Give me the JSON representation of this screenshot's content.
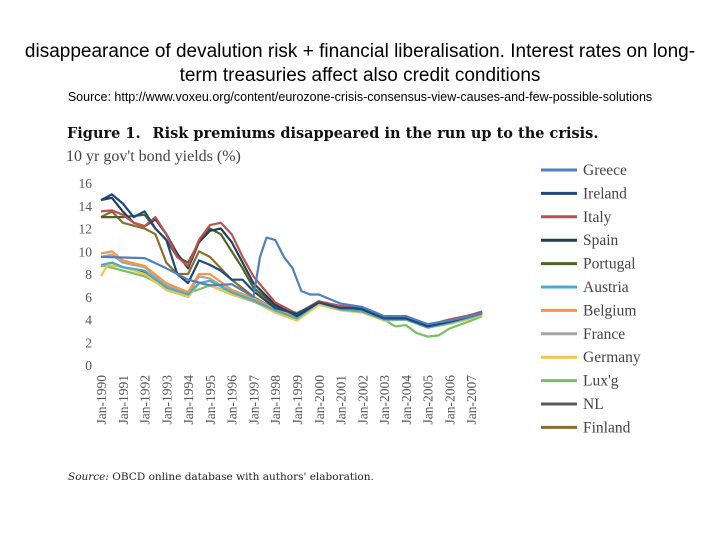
{
  "slide": {
    "headline": "disappearance of devalution risk + financial liberalisation. Interest rates on long-term treasuries affect also credit conditions",
    "source": "Source: http://www.voxeu.org/content/eurozone-crisis-consensus-view-causes-and-few-possible-solutions"
  },
  "figure": {
    "label": "Figure 1.",
    "title": "Risk premiums disappeared in the run up to the crisis.",
    "source_label": "Source:",
    "source_text": " OBCD online database with authors' elaboration."
  },
  "chart_data": {
    "type": "line",
    "title": "Risk premiums disappeared in the run up to the crisis.",
    "ylabel": "10 yr gov't bond yields (%)",
    "xlabel": "",
    "ylim": [
      0,
      16
    ],
    "yticks": [
      "0",
      "2",
      "4",
      "6",
      "8",
      "10",
      "12",
      "14",
      "16"
    ],
    "xlim": [
      1990,
      2008
    ],
    "xticks": [
      "Jan-1990",
      "Jan-1991",
      "Jan-1992",
      "Jan-1993",
      "Jan-1994",
      "Jan-1995",
      "Jan-1996",
      "Jan-1997",
      "Jan-1998",
      "Jan-1999",
      "Jan-2000",
      "Jan-2001",
      "Jan-2002",
      "Jan-2003",
      "Jan-2004",
      "Jan-2005",
      "Jan-2006",
      "Jan-2007"
    ],
    "grid": false,
    "legend_position": "right",
    "series": [
      {
        "name": "Greece",
        "color": "#4f81bd",
        "points": [
          [
            1990,
            9.5
          ],
          [
            1992,
            9.4
          ],
          [
            1993,
            8.5
          ],
          [
            1994,
            7.5
          ],
          [
            1995,
            7.0
          ],
          [
            1996,
            7.1
          ],
          [
            1997,
            6.0
          ],
          [
            1997.3,
            9.5
          ],
          [
            1997.6,
            11.2
          ],
          [
            1998,
            11.0
          ],
          [
            1998.4,
            9.5
          ],
          [
            1998.8,
            8.5
          ],
          [
            1999.2,
            6.5
          ],
          [
            1999.6,
            6.2
          ],
          [
            2000,
            6.2
          ],
          [
            2001,
            5.4
          ],
          [
            2002,
            5.1
          ],
          [
            2003,
            4.3
          ],
          [
            2004,
            4.3
          ],
          [
            2005,
            3.6
          ],
          [
            2006,
            3.9
          ],
          [
            2007,
            4.3
          ],
          [
            2007.5,
            4.6
          ]
        ]
      },
      {
        "name": "Ireland",
        "color": "#1f497d",
        "points": [
          [
            1990,
            14.5
          ],
          [
            1990.5,
            15.0
          ],
          [
            1991,
            14.2
          ],
          [
            1991.5,
            13.0
          ],
          [
            1992,
            13.5
          ],
          [
            1992.5,
            12.0
          ],
          [
            1993,
            11.0
          ],
          [
            1993.5,
            8.0
          ],
          [
            1994,
            7.2
          ],
          [
            1994.5,
            9.2
          ],
          [
            1995,
            8.8
          ],
          [
            1995.5,
            8.3
          ],
          [
            1996,
            7.5
          ],
          [
            1996.5,
            7.5
          ],
          [
            1997,
            6.5
          ],
          [
            1998,
            5.0
          ],
          [
            1999,
            4.5
          ],
          [
            2000,
            5.5
          ],
          [
            2001,
            5.0
          ],
          [
            2002,
            5.0
          ],
          [
            2003,
            4.1
          ],
          [
            2004,
            4.2
          ],
          [
            2005,
            3.4
          ],
          [
            2006,
            3.8
          ],
          [
            2007,
            4.3
          ],
          [
            2007.5,
            4.6
          ]
        ]
      },
      {
        "name": "Italy",
        "color": "#c0504d",
        "points": [
          [
            1990,
            13.5
          ],
          [
            1990.5,
            13.6
          ],
          [
            1991,
            13.2
          ],
          [
            1991.5,
            12.5
          ],
          [
            1992,
            12.2
          ],
          [
            1992.5,
            13.0
          ],
          [
            1993,
            11.5
          ],
          [
            1993.5,
            9.5
          ],
          [
            1994,
            8.7
          ],
          [
            1994.5,
            11.0
          ],
          [
            1995,
            12.3
          ],
          [
            1995.5,
            12.5
          ],
          [
            1996,
            11.5
          ],
          [
            1996.5,
            9.5
          ],
          [
            1997,
            7.8
          ],
          [
            1998,
            5.5
          ],
          [
            1999,
            4.5
          ],
          [
            2000,
            5.6
          ],
          [
            2001,
            5.2
          ],
          [
            2002,
            5.0
          ],
          [
            2003,
            4.2
          ],
          [
            2004,
            4.3
          ],
          [
            2005,
            3.5
          ],
          [
            2006,
            4.0
          ],
          [
            2007,
            4.4
          ],
          [
            2007.5,
            4.7
          ]
        ]
      },
      {
        "name": "Spain",
        "color": "#1e4159",
        "points": [
          [
            1990,
            14.5
          ],
          [
            1990.5,
            14.7
          ],
          [
            1991,
            13.5
          ],
          [
            1991.5,
            12.5
          ],
          [
            1992,
            12.2
          ],
          [
            1992.5,
            12.8
          ],
          [
            1993,
            11.5
          ],
          [
            1993.5,
            9.8
          ],
          [
            1994,
            8.5
          ],
          [
            1994.5,
            10.8
          ],
          [
            1995,
            11.8
          ],
          [
            1995.5,
            12.0
          ],
          [
            1996,
            10.8
          ],
          [
            1996.5,
            9.0
          ],
          [
            1997,
            7.2
          ],
          [
            1998,
            5.3
          ],
          [
            1999,
            4.3
          ],
          [
            2000,
            5.5
          ],
          [
            2001,
            5.1
          ],
          [
            2002,
            4.9
          ],
          [
            2003,
            4.1
          ],
          [
            2004,
            4.1
          ],
          [
            2005,
            3.4
          ],
          [
            2006,
            3.8
          ],
          [
            2007,
            4.3
          ],
          [
            2007.5,
            4.6
          ]
        ]
      },
      {
        "name": "Portugal",
        "color": "#4f6228",
        "points": [
          [
            1990,
            13.0
          ],
          [
            1991,
            13.0
          ],
          [
            1992,
            13.2
          ],
          [
            1992.5,
            12.0
          ],
          [
            1993,
            11.0
          ],
          [
            1993.5,
            9.5
          ],
          [
            1994,
            9.0
          ],
          [
            1994.5,
            10.8
          ],
          [
            1995,
            12.0
          ],
          [
            1995.5,
            11.5
          ],
          [
            1996,
            10.0
          ],
          [
            1996.5,
            8.5
          ],
          [
            1997,
            6.8
          ],
          [
            1998,
            5.2
          ],
          [
            1999,
            4.5
          ],
          [
            2000,
            5.6
          ],
          [
            2001,
            5.1
          ],
          [
            2002,
            5.0
          ],
          [
            2003,
            4.2
          ],
          [
            2004,
            4.2
          ],
          [
            2005,
            3.4
          ],
          [
            2006,
            3.9
          ],
          [
            2007,
            4.4
          ],
          [
            2007.5,
            4.7
          ]
        ]
      },
      {
        "name": "Austria",
        "color": "#4bacc6",
        "points": [
          [
            1990,
            8.8
          ],
          [
            1990.5,
            9.0
          ],
          [
            1991,
            8.6
          ],
          [
            1992,
            8.3
          ],
          [
            1993,
            6.8
          ],
          [
            1994,
            6.2
          ],
          [
            1994.5,
            7.2
          ],
          [
            1995,
            7.4
          ],
          [
            1996,
            6.4
          ],
          [
            1997,
            5.7
          ],
          [
            1998,
            4.8
          ],
          [
            1999,
            4.1
          ],
          [
            2000,
            5.5
          ],
          [
            2001,
            4.9
          ],
          [
            2002,
            4.7
          ],
          [
            2003,
            4.0
          ],
          [
            2004,
            4.0
          ],
          [
            2005,
            3.3
          ],
          [
            2006,
            3.7
          ],
          [
            2007,
            4.2
          ],
          [
            2007.5,
            4.5
          ]
        ]
      },
      {
        "name": "Belgium",
        "color": "#f79646",
        "points": [
          [
            1990,
            9.8
          ],
          [
            1990.5,
            10.0
          ],
          [
            1991,
            9.2
          ],
          [
            1992,
            8.7
          ],
          [
            1993,
            7.2
          ],
          [
            1994,
            6.4
          ],
          [
            1994.5,
            8.0
          ],
          [
            1995,
            8.0
          ],
          [
            1996,
            6.6
          ],
          [
            1997,
            5.9
          ],
          [
            1998,
            4.9
          ],
          [
            1999,
            4.2
          ],
          [
            2000,
            5.6
          ],
          [
            2001,
            5.0
          ],
          [
            2002,
            4.8
          ],
          [
            2003,
            4.1
          ],
          [
            2004,
            4.1
          ],
          [
            2005,
            3.4
          ],
          [
            2006,
            3.8
          ],
          [
            2007,
            4.3
          ],
          [
            2007.5,
            4.6
          ]
        ]
      },
      {
        "name": "France",
        "color": "#a5a5a5",
        "points": [
          [
            1990,
            9.5
          ],
          [
            1990.5,
            9.7
          ],
          [
            1991,
            9.0
          ],
          [
            1992,
            8.6
          ],
          [
            1993,
            7.0
          ],
          [
            1994,
            6.2
          ],
          [
            1994.5,
            7.8
          ],
          [
            1995,
            7.6
          ],
          [
            1996,
            6.4
          ],
          [
            1997,
            5.6
          ],
          [
            1998,
            4.8
          ],
          [
            1999,
            4.1
          ],
          [
            2000,
            5.5
          ],
          [
            2001,
            4.9
          ],
          [
            2002,
            4.7
          ],
          [
            2003,
            4.0
          ],
          [
            2004,
            4.0
          ],
          [
            2005,
            3.3
          ],
          [
            2006,
            3.7
          ],
          [
            2007,
            4.2
          ],
          [
            2007.5,
            4.5
          ]
        ]
      },
      {
        "name": "Germany",
        "color": "#f3c64b",
        "points": [
          [
            1990,
            7.8
          ],
          [
            1990.3,
            8.8
          ],
          [
            1991,
            8.6
          ],
          [
            1992,
            8.0
          ],
          [
            1993,
            6.6
          ],
          [
            1994,
            6.0
          ],
          [
            1994.5,
            7.2
          ],
          [
            1995,
            7.0
          ],
          [
            1996,
            6.2
          ],
          [
            1997,
            5.6
          ],
          [
            1998,
            4.6
          ],
          [
            1999,
            3.9
          ],
          [
            2000,
            5.3
          ],
          [
            2001,
            4.8
          ],
          [
            2002,
            4.6
          ],
          [
            2003,
            3.9
          ],
          [
            2004,
            4.0
          ],
          [
            2005,
            3.3
          ],
          [
            2006,
            3.6
          ],
          [
            2007,
            4.1
          ],
          [
            2007.5,
            4.4
          ]
        ]
      },
      {
        "name": "Lux'g",
        "color": "#77c160",
        "points": [
          [
            1990,
            8.8
          ],
          [
            1991,
            8.3
          ],
          [
            1992,
            7.8
          ],
          [
            1993,
            6.8
          ],
          [
            1994,
            6.3
          ],
          [
            1995,
            7.0
          ],
          [
            1996,
            6.3
          ],
          [
            1997,
            5.6
          ],
          [
            1998,
            5.0
          ],
          [
            1999,
            4.6
          ],
          [
            2000,
            5.4
          ],
          [
            2001,
            4.8
          ],
          [
            2002,
            4.7
          ],
          [
            2003,
            4.0
          ],
          [
            2003.5,
            3.4
          ],
          [
            2004,
            3.5
          ],
          [
            2004.5,
            2.8
          ],
          [
            2005,
            2.5
          ],
          [
            2005.5,
            2.6
          ],
          [
            2006,
            3.2
          ],
          [
            2007,
            3.9
          ],
          [
            2007.5,
            4.3
          ]
        ]
      },
      {
        "name": "NL",
        "color": "#595959",
        "points": [
          [
            1990,
            8.7
          ],
          [
            1990.5,
            9.0
          ],
          [
            1991,
            8.6
          ],
          [
            1992,
            8.1
          ],
          [
            1993,
            6.6
          ],
          [
            1994,
            6.0
          ],
          [
            1994.5,
            7.2
          ],
          [
            1995,
            7.0
          ],
          [
            1996,
            6.2
          ],
          [
            1997,
            5.6
          ],
          [
            1998,
            4.7
          ],
          [
            1999,
            4.0
          ],
          [
            2000,
            5.4
          ],
          [
            2001,
            4.9
          ],
          [
            2002,
            4.7
          ],
          [
            2003,
            4.0
          ],
          [
            2004,
            4.0
          ],
          [
            2005,
            3.3
          ],
          [
            2006,
            3.7
          ],
          [
            2007,
            4.2
          ],
          [
            2007.5,
            4.5
          ]
        ]
      },
      {
        "name": "Finland",
        "color": "#8c6d2c",
        "points": [
          [
            1990,
            13.0
          ],
          [
            1990.5,
            13.5
          ],
          [
            1991,
            12.5
          ],
          [
            1992,
            12.0
          ],
          [
            1992.5,
            11.5
          ],
          [
            1993,
            9.0
          ],
          [
            1993.5,
            8.0
          ],
          [
            1994,
            8.0
          ],
          [
            1994.5,
            10.0
          ],
          [
            1995,
            9.5
          ],
          [
            1996,
            7.5
          ],
          [
            1997,
            6.0
          ],
          [
            1998,
            4.9
          ],
          [
            1999,
            4.3
          ],
          [
            2000,
            5.6
          ],
          [
            2001,
            5.0
          ],
          [
            2002,
            4.8
          ],
          [
            2003,
            4.1
          ],
          [
            2004,
            4.1
          ],
          [
            2005,
            3.4
          ],
          [
            2006,
            3.8
          ],
          [
            2007,
            4.3
          ],
          [
            2007.5,
            4.6
          ]
        ]
      }
    ]
  }
}
